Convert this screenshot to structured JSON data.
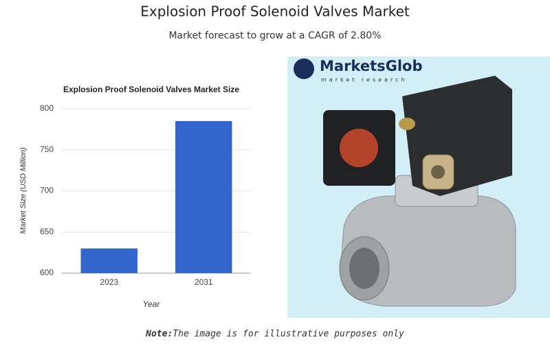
{
  "header": {
    "title": "Explosion Proof Solenoid Valves Market",
    "subtitle": "Market forecast to grow at a CAGR of 2.80%"
  },
  "chart_data": {
    "type": "bar",
    "title": "Explosion Proof Solenoid Valves Market Size",
    "categories": [
      "2023",
      "2031"
    ],
    "values": [
      630,
      785
    ],
    "color": "#3366cc",
    "xlabel": "Year",
    "ylabel": "Market Size (USD Million)",
    "ylim": [
      600,
      800
    ],
    "yticks": [
      600,
      650,
      700,
      750,
      800
    ],
    "grid": true
  },
  "logo": {
    "name": "MarketsGlob",
    "tagline": "market research"
  },
  "note": {
    "label": "Note:",
    "text": "The image is for illustrative purposes only"
  }
}
